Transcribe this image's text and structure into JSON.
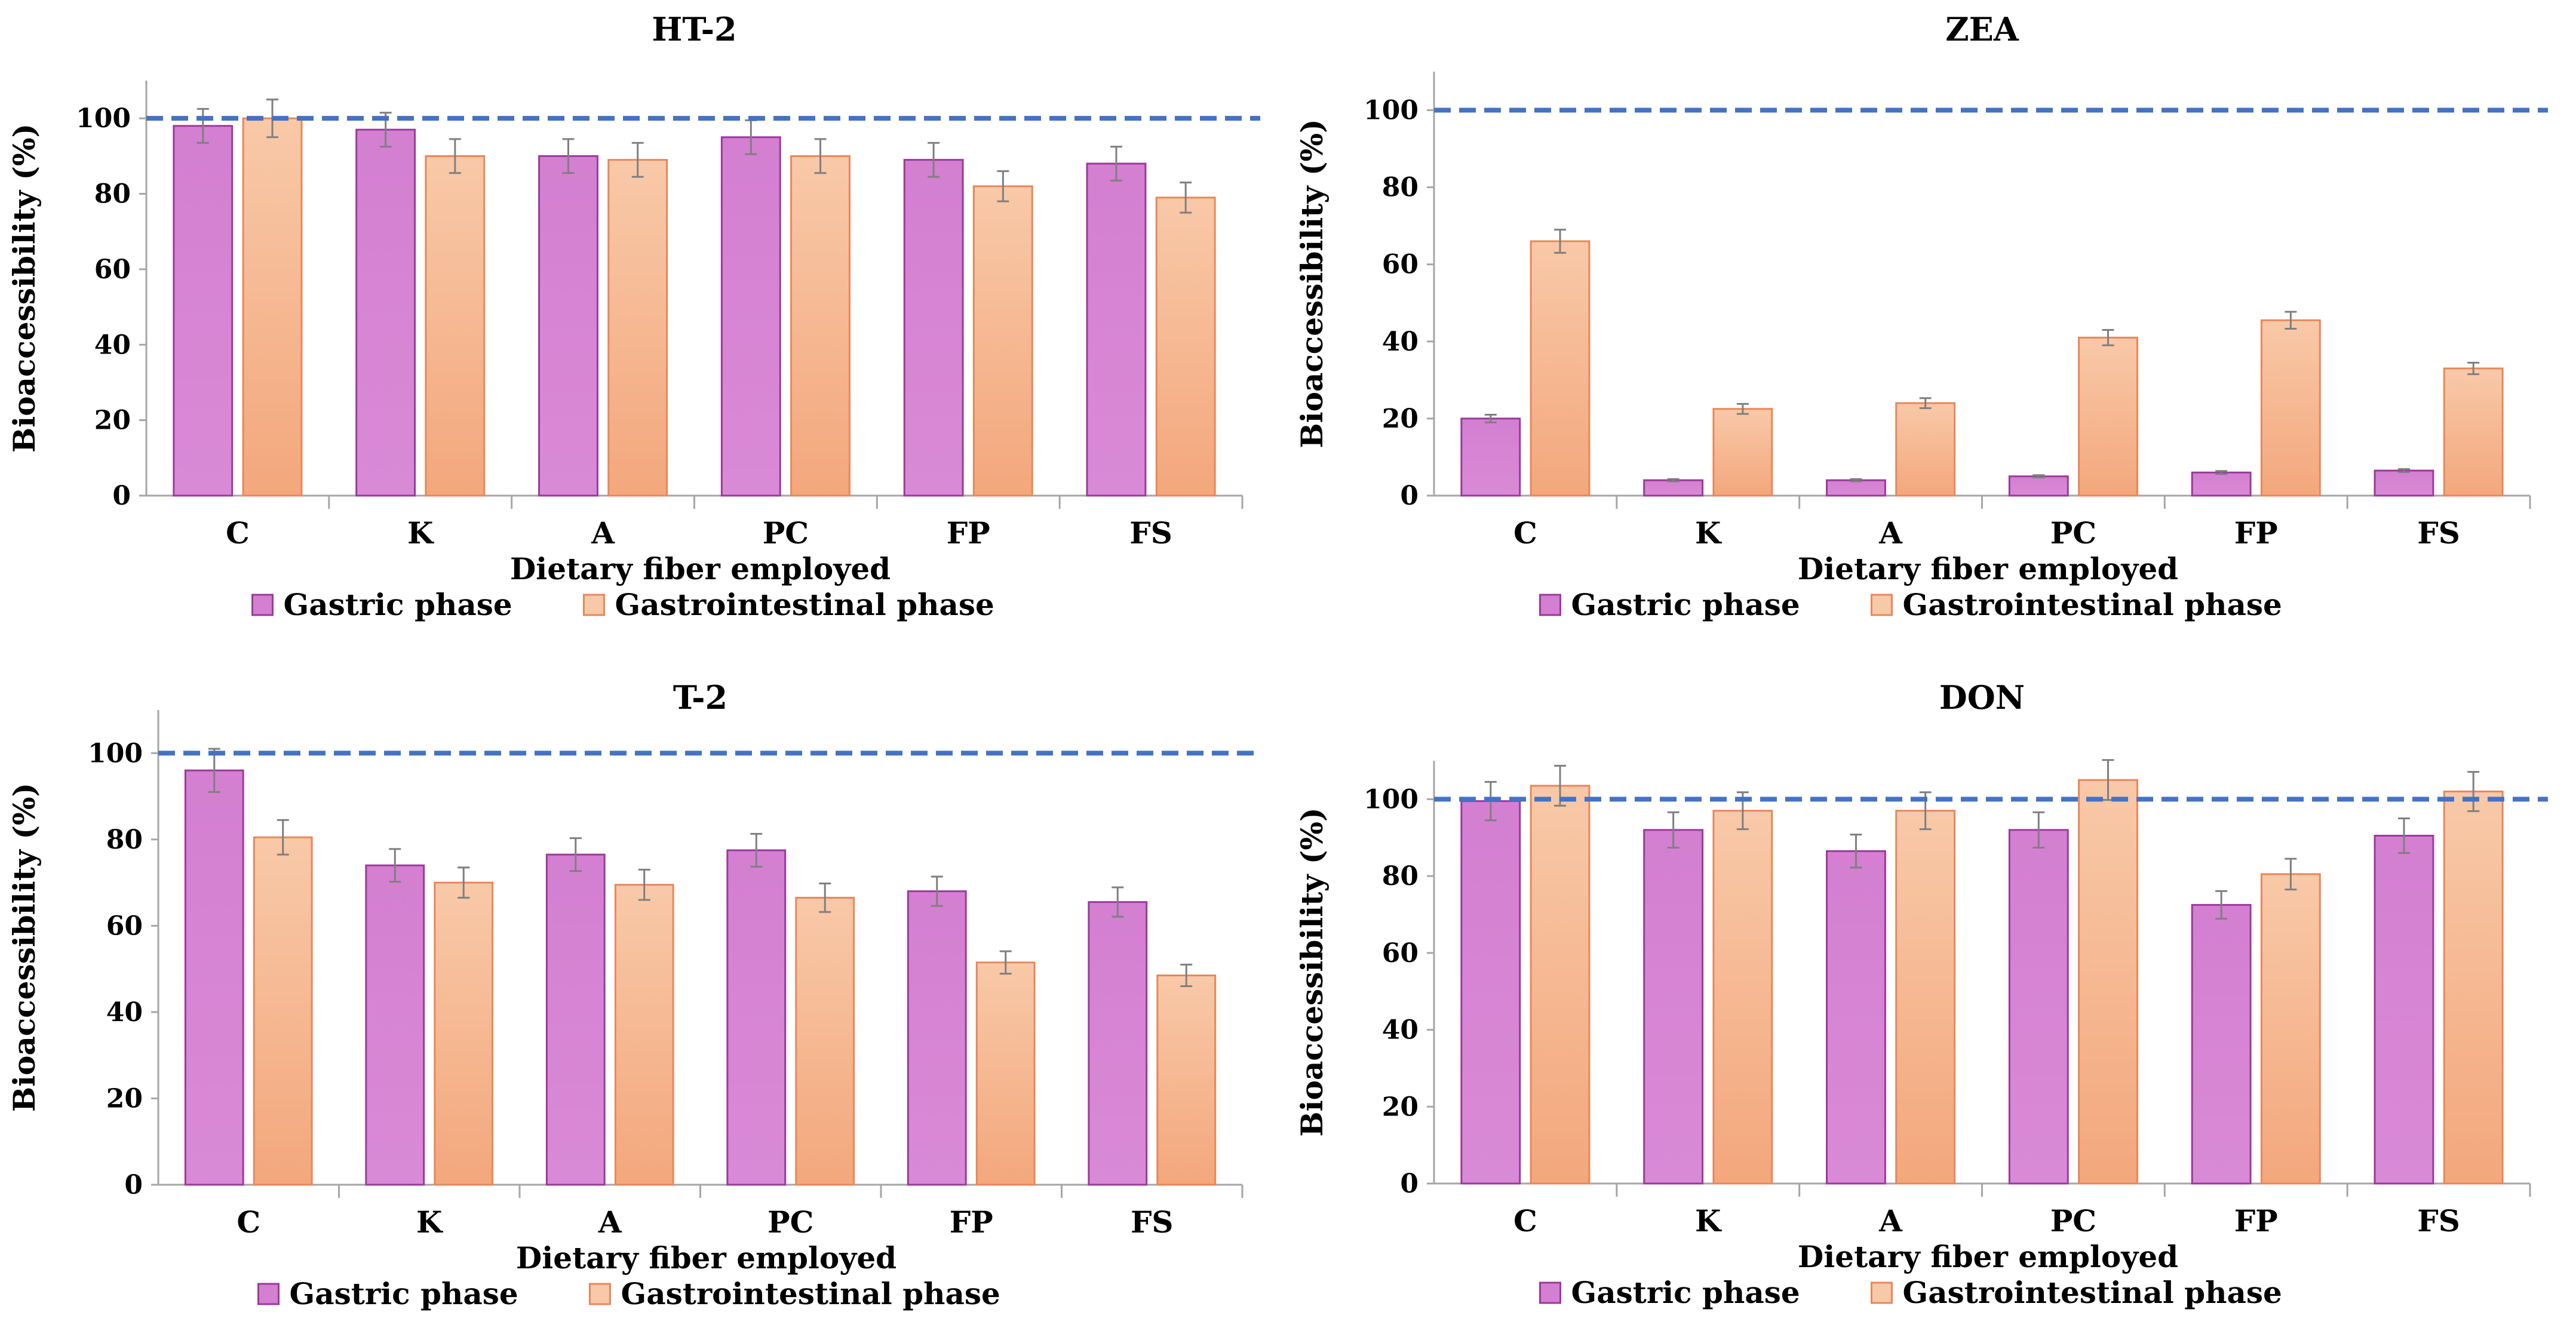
{
  "colors": {
    "gastric_fill_top": "#d47fd1",
    "gastric_fill_bottom": "#d98ad6",
    "gastric_stroke": "#9a3a9a",
    "gi_fill_top": "#f8c9a8",
    "gi_fill_bottom": "#f3a77c",
    "gi_stroke": "#e8875a",
    "reference_line": "#4472c4",
    "error_bar": "#7f7f7f",
    "axis": "#a6a6a6"
  },
  "chart_data": [
    {
      "id": "ht2",
      "type": "bar",
      "title": "HT-2",
      "xlabel": "Dietary fiber employed",
      "ylabel": "Bioaccessibility (%)",
      "ylim": [
        0,
        110
      ],
      "yticks": [
        "0",
        "20",
        "40",
        "60",
        "80",
        "100"
      ],
      "reference_line": 100,
      "categories": [
        "C",
        "K",
        "A",
        "PC",
        "FP",
        "FS"
      ],
      "series": [
        {
          "name": "Gastric phase",
          "values": [
            98,
            97,
            90,
            95,
            89,
            88
          ],
          "errors": [
            4.5,
            4.5,
            4.5,
            4.5,
            4.5,
            4.5
          ]
        },
        {
          "name": "Gastrointestinal phase",
          "values": [
            100,
            90,
            89,
            90,
            82,
            79
          ],
          "errors": [
            5,
            4.5,
            4.5,
            4.5,
            4,
            4
          ]
        }
      ],
      "legend": [
        "Gastric phase",
        "Gastrointestinal phase"
      ]
    },
    {
      "id": "zea",
      "type": "bar",
      "title": "ZEA",
      "xlabel": "Dietary fiber employed",
      "ylabel": "Bioaccessibility (%)",
      "ylim": [
        0,
        110
      ],
      "yticks": [
        "0",
        "20",
        "40",
        "60",
        "80",
        "100"
      ],
      "reference_line": 100,
      "categories": [
        "C",
        "K",
        "A",
        "PC",
        "FP",
        "FS"
      ],
      "series": [
        {
          "name": "Gastric phase",
          "values": [
            20,
            4,
            4,
            5,
            6,
            6.5
          ],
          "errors": [
            1,
            0.3,
            0.3,
            0.3,
            0.4,
            0.4
          ]
        },
        {
          "name": "Gastrointestinal phase",
          "values": [
            66,
            22.5,
            24,
            41,
            45.5,
            33
          ],
          "errors": [
            3,
            1.3,
            1.3,
            2,
            2.2,
            1.5
          ]
        }
      ],
      "legend": [
        "Gastric phase",
        "Gastrointestinal phase"
      ]
    },
    {
      "id": "t2",
      "type": "bar",
      "title": "T-2",
      "xlabel": "Dietary fiber employed",
      "ylabel": "Bioaccessibility (%)",
      "ylim": [
        0,
        110
      ],
      "yticks": [
        "0",
        "20",
        "40",
        "60",
        "80",
        "100"
      ],
      "reference_line": 100,
      "categories": [
        "C",
        "K",
        "A",
        "PC",
        "FP",
        "FS"
      ],
      "series": [
        {
          "name": "Gastric phase",
          "values": [
            96,
            74,
            76.5,
            77.5,
            68,
            65.5
          ],
          "errors": [
            5,
            3.8,
            3.8,
            3.8,
            3.4,
            3.4
          ]
        },
        {
          "name": "Gastrointestinal phase",
          "values": [
            80.5,
            70,
            69.5,
            66.5,
            51.5,
            48.5
          ],
          "errors": [
            4,
            3.5,
            3.5,
            3.3,
            2.6,
            2.5
          ]
        }
      ],
      "legend": [
        "Gastric phase",
        "Gastrointestinal phase"
      ]
    },
    {
      "id": "don",
      "type": "bar",
      "title": "DON",
      "xlabel": "Dietary fiber employed",
      "ylabel": "Bioaccessibility (%)",
      "ylim": [
        0,
        110
      ],
      "yticks": [
        "0",
        "20",
        "40",
        "60",
        "80",
        "100"
      ],
      "reference_line": 100,
      "categories": [
        "C",
        "K",
        "A",
        "PC",
        "FP",
        "FS"
      ],
      "series": [
        {
          "name": "Gastric phase",
          "values": [
            99.5,
            92,
            86.5,
            92,
            72.5,
            90.5
          ],
          "errors": [
            5,
            4.6,
            4.3,
            4.6,
            3.6,
            4.5
          ]
        },
        {
          "name": "Gastrointestinal phase",
          "values": [
            103.5,
            97,
            97,
            105,
            80.5,
            102
          ],
          "errors": [
            5.2,
            4.8,
            4.8,
            5.2,
            4,
            5.1
          ]
        }
      ],
      "legend": [
        "Gastric phase",
        "Gastrointestinal phase"
      ]
    }
  ]
}
